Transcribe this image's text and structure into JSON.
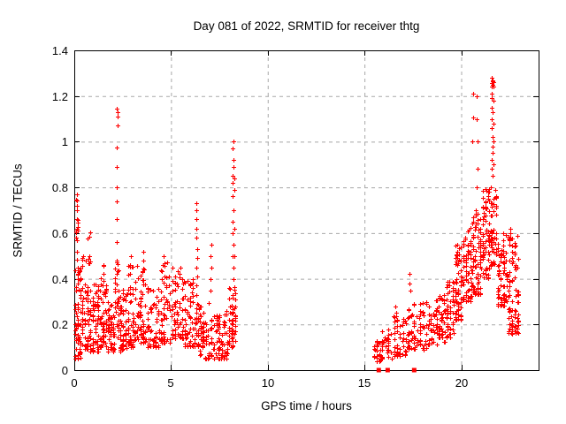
{
  "chart_data": {
    "type": "scatter",
    "title": "Day 081 of 2022, SRMTID for receiver thtg",
    "xlabel": "GPS time / hours",
    "ylabel": "SRMTID / TECUs",
    "xlim": [
      0,
      24
    ],
    "ylim": [
      0,
      1.4
    ],
    "xticks": [
      0,
      5,
      10,
      15,
      20
    ],
    "xtick_labels": [
      "0",
      "5",
      "10",
      "15",
      "20"
    ],
    "yticks": [
      0,
      0.2,
      0.4,
      0.6,
      0.8,
      1.0,
      1.2,
      1.4
    ],
    "ytick_labels": [
      "0",
      "0.2",
      "0.4",
      "0.6",
      "0.8",
      "1",
      "1.2",
      "1.4"
    ],
    "grid": {
      "visible": true,
      "style": "dashed",
      "color": "#a8a8a8"
    },
    "legend": "none",
    "marker": "plus",
    "marker_color": "#ff0000",
    "axis_color": "#000000",
    "background_color": "#ffffff",
    "data_gap": {
      "from_hour": 8.4,
      "to_hour": 15.45
    },
    "prng_seed": 7,
    "noise_clusters": [
      {
        "x0": 0.02,
        "x1": 0.35,
        "n": 70,
        "ymin": 0.05,
        "ymax": 0.45,
        "bias": 1.6
      },
      {
        "x0": 0.05,
        "x1": 0.2,
        "n": 10,
        "ymin": 0.45,
        "ymax": 0.78,
        "bias": 1.0
      },
      {
        "x0": 0.35,
        "x1": 0.75,
        "n": 55,
        "ymin": 0.09,
        "ymax": 0.5,
        "bias": 1.8
      },
      {
        "x0": 0.68,
        "x1": 0.85,
        "n": 8,
        "ymin": 0.45,
        "ymax": 0.63,
        "bias": 1.0
      },
      {
        "x0": 0.75,
        "x1": 1.3,
        "n": 70,
        "ymin": 0.08,
        "ymax": 0.38,
        "bias": 1.6
      },
      {
        "x0": 1.3,
        "x1": 1.7,
        "n": 55,
        "ymin": 0.1,
        "ymax": 0.46,
        "bias": 1.5
      },
      {
        "x0": 1.7,
        "x1": 2.08,
        "n": 45,
        "ymin": 0.08,
        "ymax": 0.3,
        "bias": 1.4
      },
      {
        "x0": 2.08,
        "x1": 2.32,
        "n": 30,
        "ymin": 0.14,
        "ymax": 0.48,
        "bias": 1.2
      },
      {
        "x0": 2.32,
        "x1": 2.72,
        "n": 50,
        "ymin": 0.08,
        "ymax": 0.36,
        "bias": 1.5
      },
      {
        "x0": 2.72,
        "x1": 3.08,
        "n": 45,
        "ymin": 0.1,
        "ymax": 0.5,
        "bias": 1.6
      },
      {
        "x0": 3.08,
        "x1": 3.75,
        "n": 65,
        "ymin": 0.12,
        "ymax": 0.46,
        "bias": 1.7
      },
      {
        "x0": 3.75,
        "x1": 4.42,
        "n": 60,
        "ymin": 0.1,
        "ymax": 0.36,
        "bias": 1.5
      },
      {
        "x0": 4.42,
        "x1": 5.0,
        "n": 55,
        "ymin": 0.12,
        "ymax": 0.48,
        "bias": 1.6
      },
      {
        "x0": 5.0,
        "x1": 5.65,
        "n": 60,
        "ymin": 0.14,
        "ymax": 0.46,
        "bias": 1.5
      },
      {
        "x0": 5.65,
        "x1": 6.18,
        "n": 50,
        "ymin": 0.1,
        "ymax": 0.4,
        "bias": 1.5
      },
      {
        "x0": 6.18,
        "x1": 6.45,
        "n": 25,
        "ymin": 0.1,
        "ymax": 0.3,
        "bias": 1.2
      },
      {
        "x0": 6.45,
        "x1": 7.15,
        "n": 60,
        "ymin": 0.05,
        "ymax": 0.3,
        "bias": 1.5
      },
      {
        "x0": 7.15,
        "x1": 7.95,
        "n": 70,
        "ymin": 0.05,
        "ymax": 0.28,
        "bias": 1.5
      },
      {
        "x0": 7.95,
        "x1": 8.38,
        "n": 50,
        "ymin": 0.1,
        "ymax": 0.38,
        "bias": 1.4
      },
      {
        "x0": 15.45,
        "x1": 15.85,
        "n": 25,
        "ymin": 0.04,
        "ymax": 0.13,
        "bias": 1.3
      },
      {
        "x0": 15.85,
        "x1": 16.45,
        "n": 35,
        "ymin": 0.05,
        "ymax": 0.18,
        "bias": 1.4
      },
      {
        "x0": 16.45,
        "x1": 17.2,
        "n": 50,
        "ymin": 0.06,
        "ymax": 0.24,
        "bias": 1.4
      },
      {
        "x0": 17.2,
        "x1": 18.25,
        "n": 75,
        "ymin": 0.09,
        "ymax": 0.3,
        "bias": 1.5
      },
      {
        "x0": 18.25,
        "x1": 19.2,
        "n": 75,
        "ymin": 0.11,
        "ymax": 0.33,
        "bias": 1.5
      },
      {
        "x0": 19.2,
        "x1": 19.65,
        "n": 45,
        "ymin": 0.14,
        "ymax": 0.4,
        "bias": 1.4
      },
      {
        "x0": 19.65,
        "x1": 20.05,
        "n": 55,
        "ymin": 0.22,
        "ymax": 0.55,
        "bias": 1.3
      },
      {
        "x0": 20.05,
        "x1": 20.55,
        "n": 65,
        "ymin": 0.3,
        "ymax": 0.63,
        "bias": 1.3
      },
      {
        "x0": 20.55,
        "x1": 21.05,
        "n": 75,
        "ymin": 0.33,
        "ymax": 0.7,
        "bias": 1.3
      },
      {
        "x0": 21.05,
        "x1": 21.5,
        "n": 65,
        "ymin": 0.4,
        "ymax": 0.8,
        "bias": 1.3
      },
      {
        "x0": 21.5,
        "x1": 21.85,
        "n": 55,
        "ymin": 0.45,
        "ymax": 0.8,
        "bias": 1.2
      },
      {
        "x0": 21.85,
        "x1": 22.4,
        "n": 70,
        "ymin": 0.28,
        "ymax": 0.62,
        "bias": 1.4
      },
      {
        "x0": 22.4,
        "x1": 23.0,
        "n": 85,
        "ymin": 0.16,
        "ymax": 0.6,
        "bias": 1.6
      }
    ],
    "spike_columns": [
      {
        "x": 0.13,
        "ys": [
          0.77,
          0.745,
          0.72,
          0.7,
          0.66,
          0.62,
          0.57,
          0.52
        ]
      },
      {
        "x": 2.2,
        "ys": [
          1.145,
          1.13,
          1.11,
          1.07,
          0.975,
          0.89,
          0.8,
          0.74,
          0.66,
          0.56,
          0.48
        ]
      },
      {
        "x": 2.9,
        "ys": [
          0.5,
          0.46,
          0.42
        ]
      },
      {
        "x": 3.6,
        "ys": [
          0.52,
          0.48,
          0.44
        ]
      },
      {
        "x": 4.6,
        "ys": [
          0.5,
          0.46
        ]
      },
      {
        "x": 6.32,
        "ys": [
          0.73,
          0.7,
          0.66,
          0.62,
          0.58,
          0.53,
          0.49,
          0.45,
          0.41,
          0.37,
          0.33,
          0.29,
          0.25
        ]
      },
      {
        "x": 7.05,
        "ys": [
          0.55,
          0.5,
          0.45,
          0.4,
          0.35
        ]
      },
      {
        "x": 8.2,
        "ys": [
          1.0,
          0.97,
          0.92,
          0.89,
          0.85,
          0.82,
          0.76,
          0.7,
          0.65,
          0.6,
          0.55,
          0.5,
          0.45,
          0.4
        ]
      },
      {
        "x": 8.28,
        "ys": [
          0.84,
          0.79,
          0.62,
          0.5
        ]
      },
      {
        "x": 16.6,
        "ys": [
          0.28,
          0.25
        ]
      },
      {
        "x": 17.35,
        "ys": [
          0.42,
          0.38,
          0.35
        ]
      },
      {
        "x": 19.78,
        "ys": [
          0.55,
          0.52,
          0.49,
          0.46
        ]
      },
      {
        "x": 20.6,
        "ys": [
          1.21,
          1.105,
          1.0
        ]
      },
      {
        "x": 20.82,
        "ys": [
          1.2,
          1.1,
          1.0,
          0.88,
          0.8
        ]
      },
      {
        "x": 21.6,
        "ys": [
          1.28,
          1.27,
          1.265,
          1.255,
          1.25,
          1.24,
          1.21,
          1.19,
          1.15,
          1.13,
          1.1,
          1.06,
          1.02,
          0.98,
          0.95,
          0.92,
          0.88,
          0.85
        ]
      },
      {
        "x": 21.67,
        "ys": [
          1.26,
          1.24,
          1.18,
          1.08,
          1.0,
          0.9
        ]
      },
      {
        "x": 22.55,
        "ys": [
          0.62,
          0.6,
          0.58
        ]
      }
    ],
    "zero_value_squares_x": [
      15.74,
      16.2,
      17.57
    ]
  }
}
